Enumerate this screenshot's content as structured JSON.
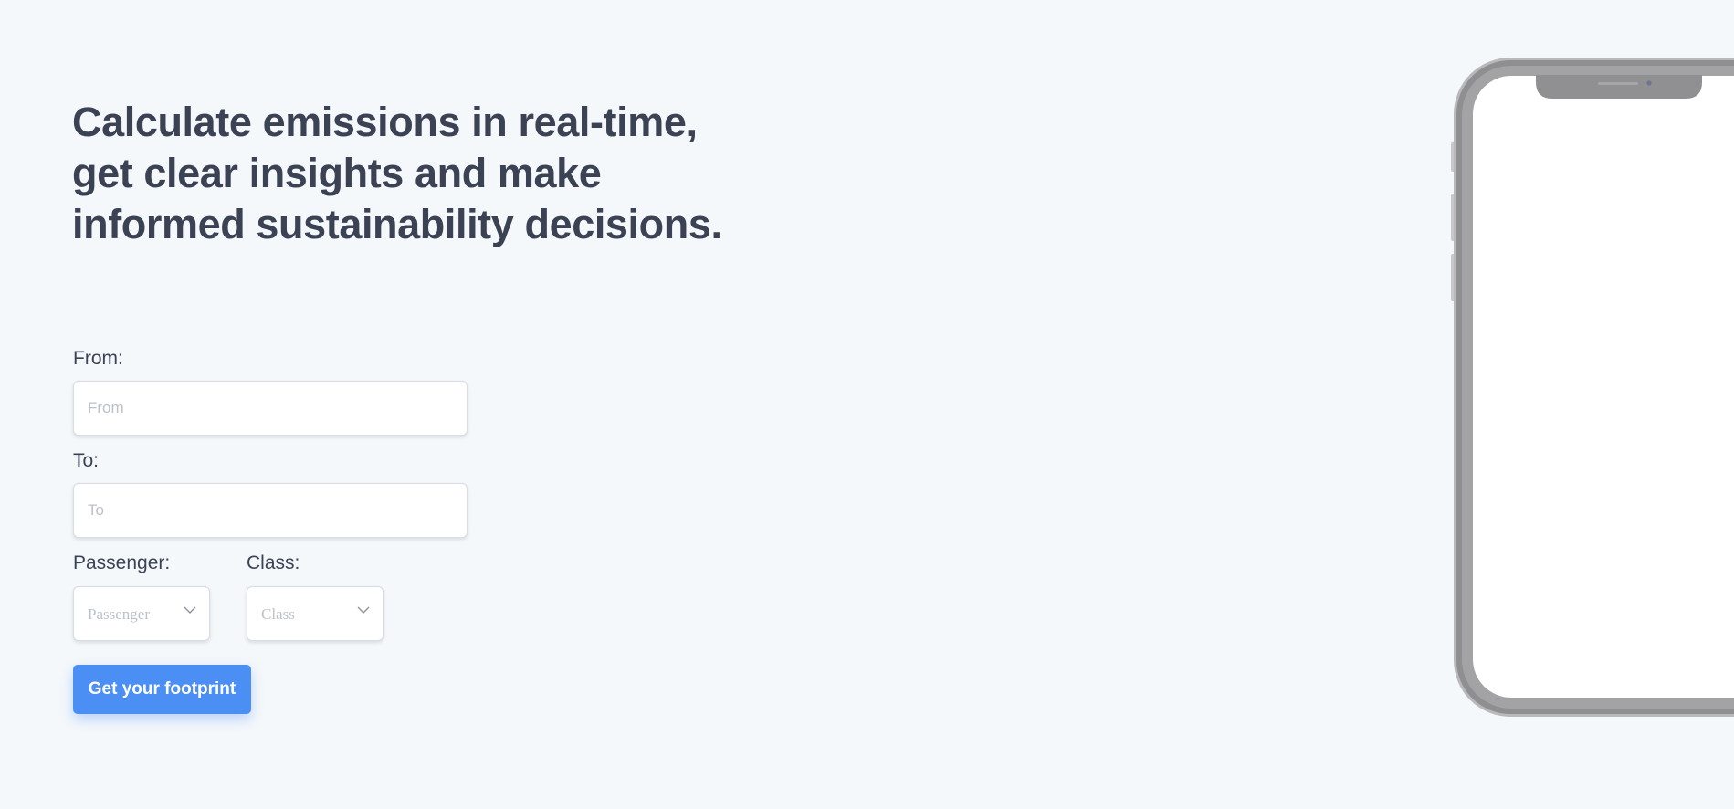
{
  "hero": {
    "title": "Calculate emissions in real-time, get clear insights and make informed sustainability decisions."
  },
  "form": {
    "from": {
      "label": "From:",
      "placeholder": "From",
      "value": ""
    },
    "to": {
      "label": "To:",
      "placeholder": "To",
      "value": ""
    },
    "passenger": {
      "label": "Passenger:",
      "placeholder": "Passenger"
    },
    "class": {
      "label": "Class:",
      "placeholder": "Class"
    },
    "submit_label": "Get your footprint"
  },
  "colors": {
    "background": "#f5f8fb",
    "heading": "#3b4254",
    "accent": "#4b8ef4",
    "placeholder": "#bcc1ca",
    "phone_frame": "#9a9a9d"
  },
  "icons": {
    "dropdown": "chevron-down-icon"
  }
}
